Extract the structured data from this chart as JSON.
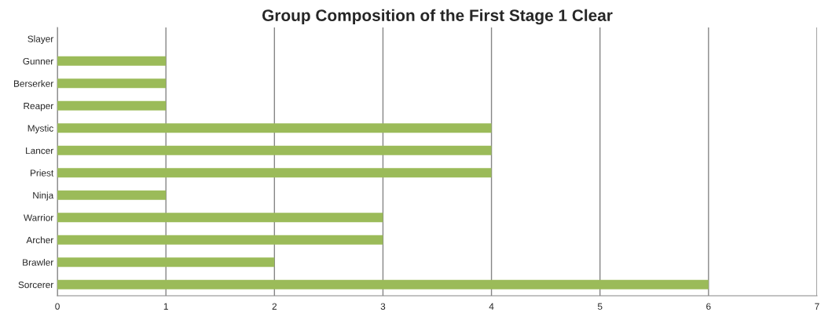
{
  "chart_data": {
    "type": "bar",
    "orientation": "horizontal",
    "title": "Group Composition of the First Stage 1 Clear",
    "categories": [
      "Slayer",
      "Gunner",
      "Berserker",
      "Reaper",
      "Mystic",
      "Lancer",
      "Priest",
      "Ninja",
      "Warrior",
      "Archer",
      "Brawler",
      "Sorcerer"
    ],
    "values": [
      0,
      1,
      1,
      1,
      4,
      4,
      4,
      1,
      3,
      3,
      2,
      6
    ],
    "color": "#9bbb59",
    "xlim": [
      0,
      7
    ],
    "xticks": [
      0,
      1,
      2,
      3,
      4,
      5,
      6,
      7
    ],
    "grid": "x"
  }
}
